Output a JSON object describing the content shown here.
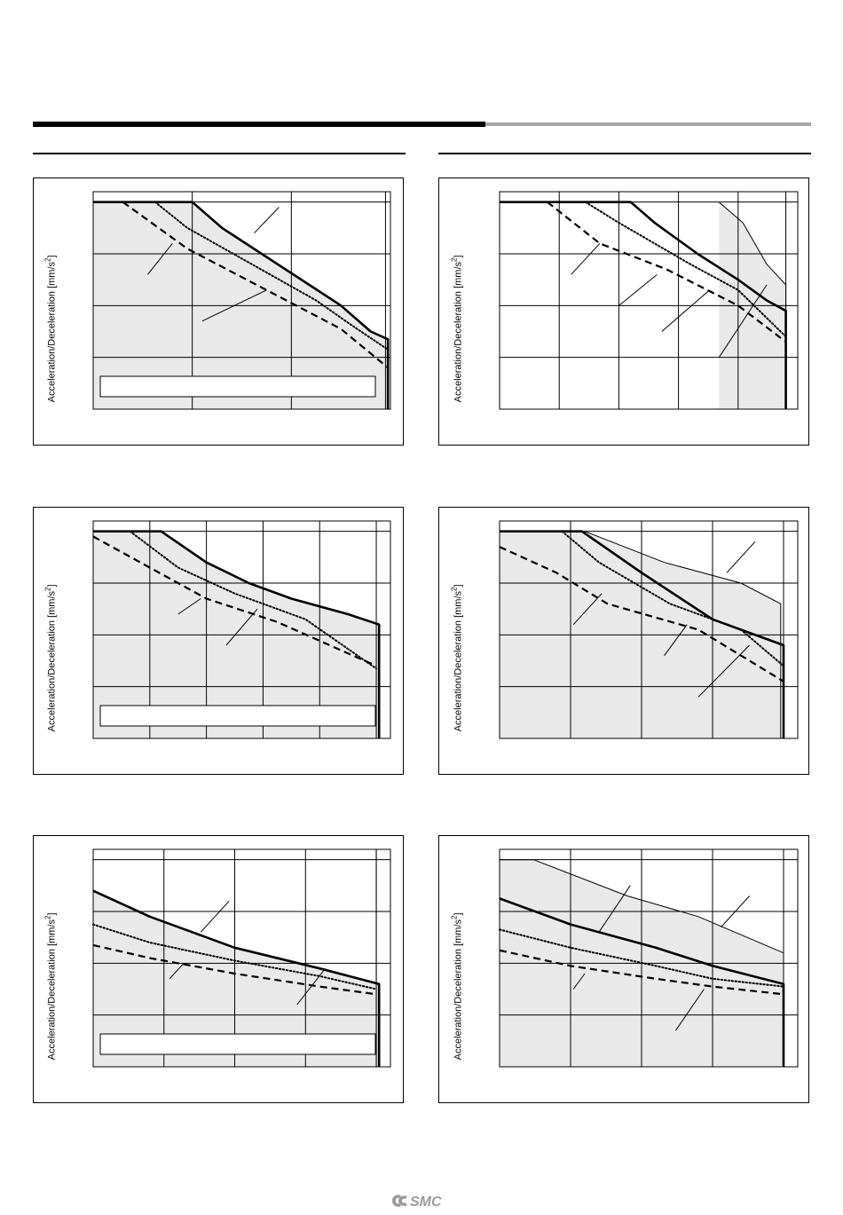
{
  "page": {
    "logo_text": "SMC"
  },
  "chart_data": [
    {
      "type": "line",
      "ylabel_parts": [
        "Acceleration/Deceleration [mm/s",
        "2",
        "]"
      ],
      "xlim": [
        0,
        1.2
      ],
      "ylim": [
        0,
        4.2
      ],
      "x_grid": [
        0.4,
        0.8
      ],
      "y_grid": [
        1,
        2,
        3,
        4
      ],
      "extra_x_line": 1.18,
      "shade": true,
      "legend_box": true,
      "series": [
        {
          "style": "solid",
          "points": [
            [
              0,
              4
            ],
            [
              0.4,
              4
            ],
            [
              0.52,
              3.5
            ],
            [
              1.0,
              2.0
            ],
            [
              1.12,
              1.5
            ],
            [
              1.19,
              1.35
            ],
            [
              1.19,
              0
            ]
          ]
        },
        {
          "style": "dotted",
          "points": [
            [
              0.25,
              4
            ],
            [
              0.38,
              3.5
            ],
            [
              0.9,
              2.1
            ],
            [
              1.05,
              1.6
            ],
            [
              1.19,
              1.15
            ]
          ]
        },
        {
          "style": "dashed",
          "points": [
            [
              0.12,
              4
            ],
            [
              0.38,
              3.1
            ],
            [
              0.62,
              2.5
            ],
            [
              1.0,
              1.55
            ],
            [
              1.19,
              0.8
            ]
          ]
        }
      ],
      "leaders": [
        [
          [
            0.65,
            3.4
          ],
          [
            0.75,
            3.9
          ]
        ],
        [
          [
            0.22,
            2.6
          ],
          [
            0.32,
            3.2
          ]
        ],
        [
          [
            0.44,
            1.7
          ],
          [
            0.7,
            2.3
          ]
        ]
      ]
    },
    {
      "type": "line",
      "ylabel_parts": [
        "Acceleration/Deceleration [mm/s",
        "2",
        "]"
      ],
      "xlim": [
        0,
        1.25
      ],
      "ylim": [
        0,
        4.2
      ],
      "x_grid": [
        0.25,
        0.5,
        0.75,
        1.0
      ],
      "y_grid": [
        1,
        2,
        3,
        4
      ],
      "extra_x_line": 1.2,
      "shade": false,
      "legend_box": false,
      "series": [
        {
          "style": "thin",
          "points": [
            [
              0.92,
              4
            ],
            [
              1.02,
              3.6
            ],
            [
              1.12,
              2.8
            ],
            [
              1.2,
              2.4
            ],
            [
              1.2,
              0
            ]
          ]
        },
        {
          "style": "solid",
          "points": [
            [
              0,
              4
            ],
            [
              0.55,
              4
            ],
            [
              0.65,
              3.6
            ],
            [
              0.83,
              3.0
            ],
            [
              1.0,
              2.5
            ],
            [
              1.12,
              2.1
            ],
            [
              1.2,
              1.9
            ],
            [
              1.2,
              0
            ]
          ]
        },
        {
          "style": "dotted",
          "points": [
            [
              0.36,
              4
            ],
            [
              0.5,
              3.6
            ],
            [
              0.8,
              2.8
            ],
            [
              1.0,
              2.3
            ],
            [
              1.2,
              1.4
            ]
          ]
        },
        {
          "style": "dashed",
          "points": [
            [
              0.2,
              4
            ],
            [
              0.42,
              3.2
            ],
            [
              0.7,
              2.7
            ],
            [
              1.0,
              2.0
            ],
            [
              1.2,
              1.3
            ]
          ]
        }
      ],
      "leaders": [
        [
          [
            0.3,
            2.6
          ],
          [
            0.42,
            3.2
          ]
        ],
        [
          [
            0.5,
            2.0
          ],
          [
            0.66,
            2.6
          ]
        ],
        [
          [
            0.68,
            1.5
          ],
          [
            0.88,
            2.3
          ]
        ],
        [
          [
            0.92,
            1.0
          ],
          [
            1.12,
            2.4
          ]
        ]
      ]
    },
    {
      "type": "line",
      "ylabel_parts": [
        "Acceleration/Deceleration [mm/s",
        "2",
        "]"
      ],
      "xlim": [
        0,
        1.05
      ],
      "ylim": [
        0,
        4.2
      ],
      "x_grid": [
        0.2,
        0.4,
        0.6,
        0.8
      ],
      "y_grid": [
        1,
        2,
        3,
        4
      ],
      "extra_x_line": 1.0,
      "shade": true,
      "legend_box": true,
      "series": [
        {
          "style": "solid",
          "points": [
            [
              0,
              4
            ],
            [
              0.24,
              4
            ],
            [
              0.4,
              3.4
            ],
            [
              0.55,
              3.0
            ],
            [
              0.7,
              2.7
            ],
            [
              0.9,
              2.4
            ],
            [
              1.01,
              2.2
            ],
            [
              1.01,
              0
            ]
          ]
        },
        {
          "style": "dotted",
          "points": [
            [
              0.13,
              4
            ],
            [
              0.3,
              3.3
            ],
            [
              0.5,
              2.8
            ],
            [
              0.75,
              2.3
            ],
            [
              1.0,
              1.35
            ]
          ]
        },
        {
          "style": "dashed",
          "points": [
            [
              0,
              3.9
            ],
            [
              0.2,
              3.3
            ],
            [
              0.4,
              2.7
            ],
            [
              0.65,
              2.25
            ],
            [
              1.0,
              1.4
            ]
          ]
        }
      ],
      "leaders": [
        [
          [
            0.3,
            2.4
          ],
          [
            0.38,
            2.7
          ]
        ],
        [
          [
            0.47,
            1.8
          ],
          [
            0.58,
            2.5
          ]
        ]
      ]
    },
    {
      "type": "line",
      "ylabel_parts": [
        "Acceleration/Deceleration [mm/s",
        "2",
        "]"
      ],
      "xlim": [
        0,
        1.05
      ],
      "ylim": [
        0,
        4.2
      ],
      "x_grid": [
        0.25,
        0.5,
        0.75,
        1.0
      ],
      "y_grid": [
        1,
        2,
        3,
        4
      ],
      "extra_x_line": 1.0,
      "shade": false,
      "legend_box": false,
      "series": [
        {
          "style": "thin",
          "points": [
            [
              0,
              4
            ],
            [
              0.3,
              4
            ],
            [
              0.58,
              3.4
            ],
            [
              0.85,
              3.0
            ],
            [
              0.99,
              2.6
            ],
            [
              0.99,
              0
            ]
          ]
        },
        {
          "style": "solid",
          "points": [
            [
              0,
              4
            ],
            [
              0.29,
              4
            ],
            [
              0.5,
              3.2
            ],
            [
              0.75,
              2.3
            ],
            [
              1.0,
              1.8
            ],
            [
              1.0,
              0
            ]
          ]
        },
        {
          "style": "dotted",
          "points": [
            [
              0.22,
              4
            ],
            [
              0.35,
              3.4
            ],
            [
              0.6,
              2.6
            ],
            [
              0.85,
              2.1
            ],
            [
              1.0,
              1.4
            ]
          ]
        },
        {
          "style": "dashed",
          "points": [
            [
              0,
              3.7
            ],
            [
              0.2,
              3.2
            ],
            [
              0.38,
              2.6
            ],
            [
              0.7,
              2.1
            ],
            [
              1.0,
              1.1
            ]
          ]
        }
      ],
      "leaders": [
        [
          [
            0.26,
            2.2
          ],
          [
            0.36,
            2.8
          ]
        ],
        [
          [
            0.58,
            1.6
          ],
          [
            0.66,
            2.2
          ]
        ],
        [
          [
            0.7,
            0.8
          ],
          [
            0.88,
            1.8
          ]
        ],
        [
          [
            0.8,
            3.2
          ],
          [
            0.9,
            3.8
          ]
        ]
      ]
    },
    {
      "type": "line",
      "ylabel_parts": [
        "Acceleration/Deceleration [mm/s",
        "2",
        "]"
      ],
      "xlim": [
        0,
        1.05
      ],
      "ylim": [
        0,
        4.2
      ],
      "x_grid": [
        0.25,
        0.5,
        0.75,
        1.0
      ],
      "y_grid": [
        1,
        2,
        3,
        4
      ],
      "extra_x_line": 1.0,
      "shade": true,
      "legend_box": true,
      "series": [
        {
          "style": "solid",
          "points": [
            [
              0,
              3.4
            ],
            [
              0.2,
              2.9
            ],
            [
              0.5,
              2.3
            ],
            [
              0.8,
              1.9
            ],
            [
              1.01,
              1.6
            ],
            [
              1.01,
              0
            ]
          ]
        },
        {
          "style": "dotted",
          "points": [
            [
              0,
              2.75
            ],
            [
              0.2,
              2.4
            ],
            [
              0.5,
              2.05
            ],
            [
              0.8,
              1.75
            ],
            [
              1.0,
              1.5
            ]
          ]
        },
        {
          "style": "dashed",
          "points": [
            [
              0,
              2.35
            ],
            [
              0.2,
              2.1
            ],
            [
              0.5,
              1.8
            ],
            [
              0.8,
              1.55
            ],
            [
              1.0,
              1.4
            ]
          ]
        }
      ],
      "leaders": [
        [
          [
            0.27,
            1.7
          ],
          [
            0.32,
            2.0
          ]
        ],
        [
          [
            0.38,
            2.6
          ],
          [
            0.48,
            3.2
          ]
        ],
        [
          [
            0.72,
            1.2
          ],
          [
            0.82,
            1.9
          ]
        ]
      ]
    },
    {
      "type": "line",
      "ylabel_parts": [
        "Acceleration/Deceleration [mm/s",
        "2",
        "]"
      ],
      "xlim": [
        0,
        1.05
      ],
      "ylim": [
        0,
        4.2
      ],
      "x_grid": [
        0.25,
        0.5,
        0.75,
        1.0
      ],
      "y_grid": [
        1,
        2,
        3,
        4
      ],
      "extra_x_line": 1.0,
      "shade": true,
      "legend_box": false,
      "series": [
        {
          "style": "thin",
          "points": [
            [
              0,
              4
            ],
            [
              0.12,
              4
            ],
            [
              0.45,
              3.3
            ],
            [
              0.7,
              2.9
            ],
            [
              1.0,
              2.2
            ],
            [
              1.0,
              0
            ]
          ]
        },
        {
          "style": "solid",
          "points": [
            [
              0,
              3.25
            ],
            [
              0.25,
              2.75
            ],
            [
              0.55,
              2.3
            ],
            [
              0.75,
              1.95
            ],
            [
              1.0,
              1.6
            ],
            [
              1.0,
              0
            ]
          ]
        },
        {
          "style": "dotted",
          "points": [
            [
              0,
              2.65
            ],
            [
              0.25,
              2.3
            ],
            [
              0.55,
              1.95
            ],
            [
              0.75,
              1.7
            ],
            [
              1.0,
              1.55
            ]
          ]
        },
        {
          "style": "dashed",
          "points": [
            [
              0,
              2.25
            ],
            [
              0.25,
              1.95
            ],
            [
              0.55,
              1.7
            ],
            [
              0.75,
              1.55
            ],
            [
              1.0,
              1.4
            ]
          ]
        }
      ],
      "leaders": [
        [
          [
            0.26,
            1.5
          ],
          [
            0.3,
            1.8
          ]
        ],
        [
          [
            0.35,
            2.6
          ],
          [
            0.46,
            3.5
          ]
        ],
        [
          [
            0.62,
            0.7
          ],
          [
            0.72,
            1.5
          ]
        ],
        [
          [
            0.78,
            2.7
          ],
          [
            0.88,
            3.3
          ]
        ]
      ]
    }
  ]
}
